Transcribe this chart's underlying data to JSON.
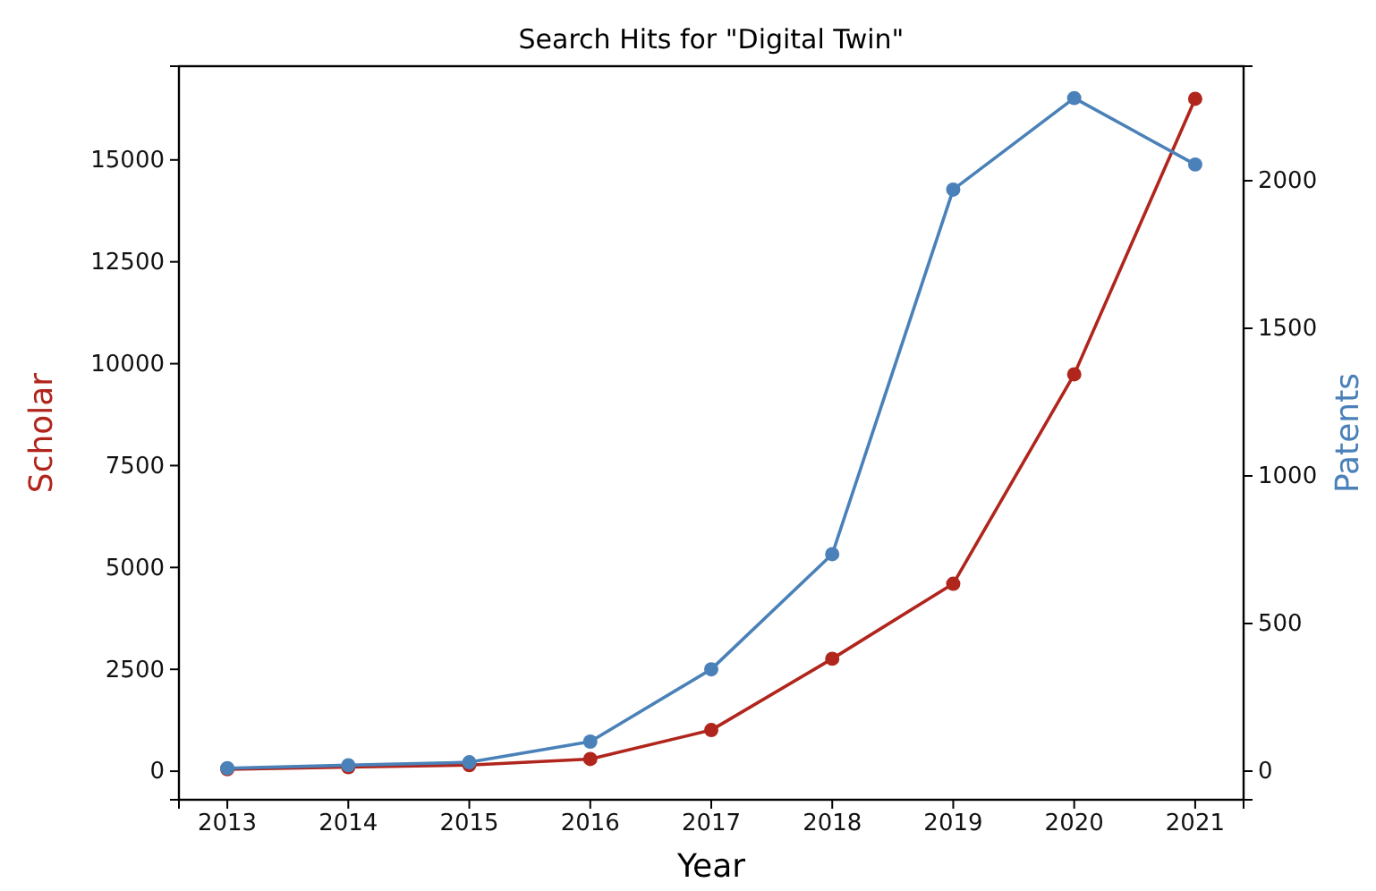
{
  "chart_data": {
    "type": "line",
    "title": "Search Hits for \"Digital Twin\"",
    "xlabel": "Year",
    "ylabel": "Scholar",
    "y2label": "Patents",
    "x": [
      2013,
      2014,
      2015,
      2016,
      2017,
      2018,
      2019,
      2020,
      2021
    ],
    "series": [
      {
        "color": "#b0251c",
        "values": [
          50,
          100,
          150,
          300,
          1010,
          2760,
          4600,
          9740,
          16500
        ]
      },
      {
        "color": "#4a81b8",
        "axis": "y2",
        "values": [
          10,
          20,
          30,
          100,
          345,
          735,
          1970,
          2280,
          2055
        ]
      }
    ],
    "xlim": [
      2012.6,
      2021.4
    ],
    "xticks": [
      2013,
      2014,
      2015,
      2016,
      2017,
      2018,
      2019,
      2020,
      2021
    ],
    "ylim": [
      -700,
      17300
    ],
    "yticks": [
      0,
      2500,
      5000,
      7500,
      10000,
      12500,
      15000
    ],
    "y2lim": [
      -97,
      2388
    ],
    "y2ticks": [
      0,
      500,
      1000,
      1500,
      2000
    ],
    "marker": "circle",
    "grid": false,
    "legend": false
  }
}
